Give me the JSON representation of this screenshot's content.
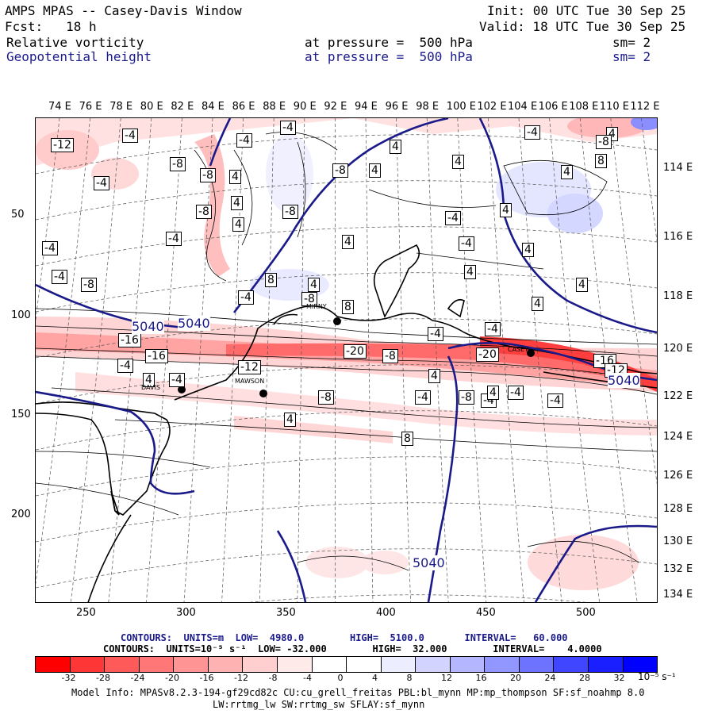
{
  "header": {
    "title": "AMPS MPAS -- Casey-Davis Window",
    "fcst": "Fcst:   18 h",
    "init": "Init: 00 UTC Tue 30 Sep 25",
    "valid": "Valid: 18 UTC Tue 30 Sep 25",
    "fields": [
      {
        "name": "Relative vorticity",
        "level": "at pressure =  500 hPa",
        "sm": "sm= 2"
      },
      {
        "name": "Geopotential height",
        "level": "at pressure =  500 hPa",
        "sm": "sm= 2"
      }
    ]
  },
  "top_lon_labels": [
    "74 E",
    "76 E",
    "78 E",
    "80 E",
    "82 E",
    "84 E",
    "86 E",
    "88 E",
    "90 E",
    "92 E",
    "94 E",
    "96 E",
    "98 E",
    "100 E",
    "102 E",
    "104 E",
    "106 E",
    "108 E",
    "110 E",
    "112 E"
  ],
  "right_lon_labels": [
    "114 E",
    "116 E",
    "118 E",
    "120 E",
    "122 E",
    "124 E",
    "126 E",
    "128 E",
    "130 E",
    "132 E",
    "134 E"
  ],
  "left_y_labels": [
    "50",
    "100",
    "150",
    "200"
  ],
  "bottom_x_labels": [
    "250",
    "300",
    "350",
    "400",
    "450",
    "500"
  ],
  "station_labels": [
    "DAVIS",
    "MIRNY",
    "MAWSON",
    "CASEY"
  ],
  "height_contour_labels": [
    "5040",
    "5040",
    "5040",
    "5040"
  ],
  "vort_labels": [
    "-12",
    "-4",
    "-8",
    "-4",
    "-4",
    "-8",
    "-4",
    "4",
    "4",
    "-8",
    "-8",
    "4",
    "4",
    "-4",
    "8",
    "4",
    "-4",
    "-8",
    "-20",
    "-8",
    "-4",
    "-16",
    "-12",
    "-4",
    "4",
    "-4",
    "-4",
    "-20",
    "-16",
    "-12",
    "-16",
    "-8",
    "-8",
    "-4",
    "4",
    "8",
    "8",
    "4",
    "4",
    "4",
    "8",
    "-4",
    "4",
    "-8",
    "-4",
    "4",
    "4",
    "-4",
    "4",
    "-8",
    "4",
    "4",
    "-4",
    "-4",
    "-8",
    "4",
    "-4",
    "4",
    "-4",
    "-4",
    "4"
  ],
  "info": {
    "line1": "CONTOURS:  UNITS=m  LOW=  4980.0        HIGH=  5100.0       INTERVAL=   60.000",
    "line2": "CONTOURS:  UNITS=10⁻⁵ s⁻¹  LOW= -32.000        HIGH=  32.000        INTERVAL=    4.0000"
  },
  "colorbar": {
    "labels": [
      "-32",
      "-28",
      "-24",
      "-20",
      "-16",
      "-12",
      "-8",
      "-4",
      "0",
      "4",
      "8",
      "12",
      "16",
      "20",
      "24",
      "28",
      "32"
    ],
    "units": "10⁻⁵ s⁻¹",
    "colors": [
      "#ff0000",
      "#ff3636",
      "#ff5a5a",
      "#ff7777",
      "#ff9494",
      "#ffb2b2",
      "#ffcfcf",
      "#ffeaea",
      "#ffffff",
      "#ffffff",
      "#ecedff",
      "#d2d4ff",
      "#b4b7ff",
      "#9296ff",
      "#6e73ff",
      "#4045ff",
      "#1a1fff",
      "#0000ff"
    ]
  },
  "model_info": {
    "line1": "Model Info: MPASv8.2.3-194-gf29cd82c CU:cu_grell_freitas PBL:bl_mynn MP:mp_thompson SF:sf_noahmp 8.0",
    "line2": "LW:rrtmg_lw SW:rrtmg_sw SFLAY:sf_mynn"
  }
}
